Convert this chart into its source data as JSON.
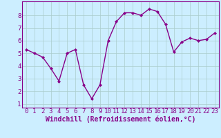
{
  "x": [
    0,
    1,
    2,
    3,
    4,
    5,
    6,
    7,
    8,
    9,
    10,
    11,
    12,
    13,
    14,
    15,
    16,
    17,
    18,
    19,
    20,
    21,
    22,
    23
  ],
  "y": [
    5.3,
    5.0,
    4.7,
    3.8,
    2.8,
    5.0,
    5.3,
    2.5,
    1.4,
    2.5,
    6.0,
    7.5,
    8.2,
    8.2,
    8.0,
    8.5,
    8.3,
    7.3,
    5.1,
    5.9,
    6.2,
    6.0,
    6.1,
    6.6
  ],
  "line_color": "#880088",
  "marker": "D",
  "marker_size": 2.0,
  "line_width": 1.0,
  "bg_color": "#cceeff",
  "grid_color": "#aacccc",
  "xlabel": "Windchill (Refroidissement éolien,°C)",
  "xlabel_color": "#880088",
  "ylabel_ticks": [
    1,
    2,
    3,
    4,
    5,
    6,
    7,
    8
  ],
  "xlim": [
    -0.5,
    23.5
  ],
  "ylim": [
    0.7,
    9.1
  ],
  "tick_label_color": "#880088",
  "tick_label_size": 6.5,
  "xlabel_size": 7.0,
  "grid_linewidth": 0.5,
  "spine_color": "#880088"
}
